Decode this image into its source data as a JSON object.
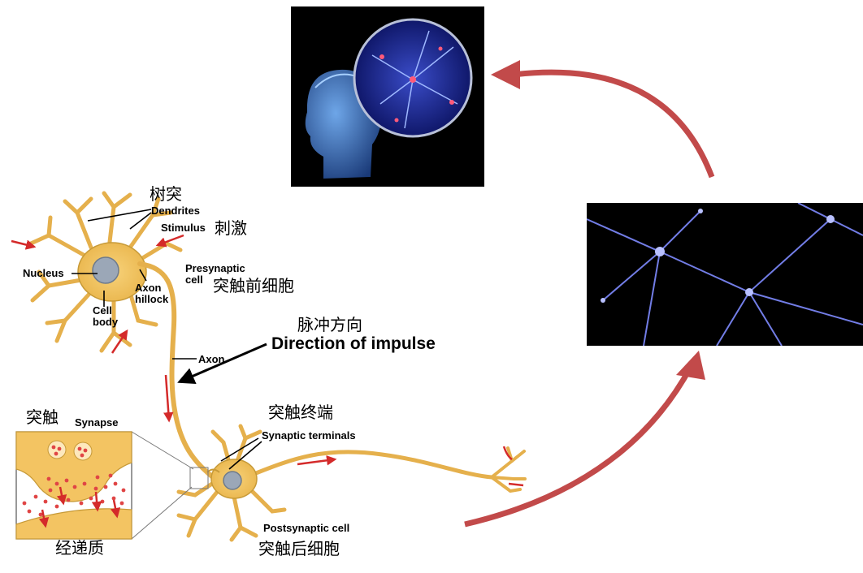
{
  "colors": {
    "neuron_fill": "#f2c25b",
    "neuron_stroke": "#c79a38",
    "arrow_red": "#c24a4a",
    "signal_red": "#d42a2a",
    "photo_bg": "#000000",
    "neuron_glow": "#7f8bff"
  },
  "labels": {
    "dendrites_zh": "树突",
    "dendrites_en": "Dendrites",
    "stimulus_en": "Stimulus",
    "stimulus_zh": "刺激",
    "nucleus_en": "Nucleus",
    "cell_body_en_1": "Cell",
    "cell_body_en_2": "body",
    "axon_hillock_en_1": "Axon",
    "axon_hillock_en_2": "hillock",
    "presynaptic_en_1": "Presynaptic",
    "presynaptic_en_2": "cell",
    "presynaptic_zh": "突触前细胞",
    "impulse_zh": "脉冲方向",
    "impulse_en": "Direction of impulse",
    "axon_en": "Axon",
    "synapse_zh": "突触",
    "synapse_en": "Synapse",
    "terminals_zh": "突触终端",
    "terminals_en": "Synaptic terminals",
    "postsynaptic_en": "Postsynaptic cell",
    "postsynaptic_zh": "突触后细胞",
    "neurotransmitter_zh": "经递质"
  },
  "images": {
    "brain_photo": "brain-neurons-photo",
    "network_photo": "neuron-network-photo"
  }
}
